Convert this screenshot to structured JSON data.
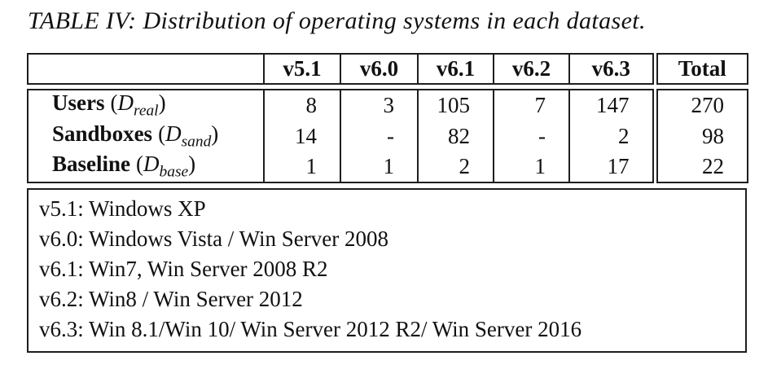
{
  "caption": "TABLE IV: Distribution of operating systems in each dataset.",
  "table": {
    "columns": [
      "v5.1",
      "v6.0",
      "v6.1",
      "v6.2",
      "v6.3"
    ],
    "total_label": "Total",
    "math": {
      "open": "(",
      "symbol": "D",
      "close": ")"
    },
    "rows": [
      {
        "name": "Users",
        "subscript": "real",
        "values": [
          "8",
          "3",
          "105",
          "7",
          "147"
        ],
        "total": "270"
      },
      {
        "name": "Sandboxes",
        "subscript": "sand",
        "values": [
          "14",
          "-",
          "82",
          "-",
          "2"
        ],
        "total": "98"
      },
      {
        "name": "Baseline",
        "subscript": "base",
        "values": [
          "1",
          "1",
          "2",
          "1",
          "17"
        ],
        "total": "22"
      }
    ]
  },
  "legend": {
    "items": [
      "v5.1: Windows XP",
      "v6.0: Windows Vista / Win Server 2008",
      "v6.1: Win7, Win Server 2008 R2",
      "v6.2: Win8 / Win Server 2012",
      "v6.3: Win 8.1/Win 10/ Win Server 2012 R2/ Win Server 2016"
    ]
  },
  "colors": {
    "border": "#1e1e1e",
    "text": "#111111",
    "background": "#ffffff"
  }
}
